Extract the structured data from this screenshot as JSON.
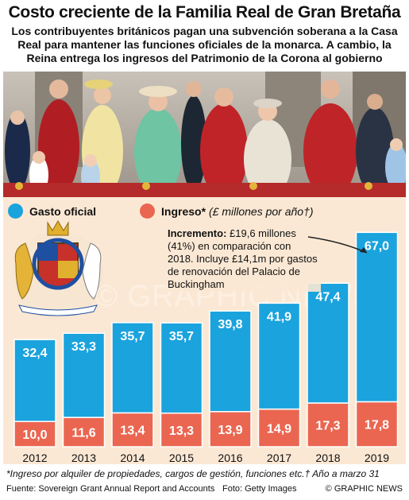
{
  "header": {
    "title": "Costo creciente de la Familia Real de Gran Bretaña",
    "subtitle": "Los contribuyentes británicos pagan una subvención soberana a la Casa Real para mantener las funciones oficiales de la monarca. A cambio, la Reina entrega los ingresos del Patrimonio de la Corona al gobierno"
  },
  "legend": {
    "official": "Gasto oficial",
    "income": "Ingreso*",
    "unit": "(£ millones por año†)"
  },
  "annotation": {
    "lead": "Incremento:",
    "text": " £19,6 millones (41%) en comparación con 2018. Incluye £14,1m por gastos de renovación del Palacio de Buckingham"
  },
  "chart_data": {
    "type": "bar",
    "categories": [
      "2012",
      "2013",
      "2014",
      "2015",
      "2016",
      "2017",
      "2018",
      "2019"
    ],
    "series": [
      {
        "name": "Gasto oficial",
        "values": [
          32.4,
          33.3,
          35.7,
          35.7,
          39.8,
          41.9,
          47.4,
          67.0
        ],
        "labels": [
          "32,4",
          "33,3",
          "35,7",
          "35,7",
          "39,8",
          "41,9",
          "47,4",
          "67,0"
        ],
        "color": "#1aa3dd"
      },
      {
        "name": "Ingreso*",
        "values": [
          10.0,
          11.6,
          13.4,
          13.3,
          13.9,
          14.9,
          17.3,
          17.8
        ],
        "labels": [
          "10,0",
          "11,6",
          "13,4",
          "13,3",
          "13,9",
          "14,9",
          "17,3",
          "17,8"
        ],
        "color": "#ea6651"
      }
    ],
    "unit": "£ millones por año",
    "stacked": true
  },
  "colors": {
    "official": "#1aa3dd",
    "income": "#ea6651",
    "background": "#fbe8d4",
    "banner": "#b52a2a"
  },
  "footer": {
    "footnote": "*Ingreso por alquiler de propiedades, cargos de gestión, funciones etc.†  Año a marzo 31",
    "source": "Fuente: Sovereign Grant Annual Report and Accounts",
    "photo": "Foto: Getty Images",
    "brand": "© GRAPHIC NEWS"
  }
}
